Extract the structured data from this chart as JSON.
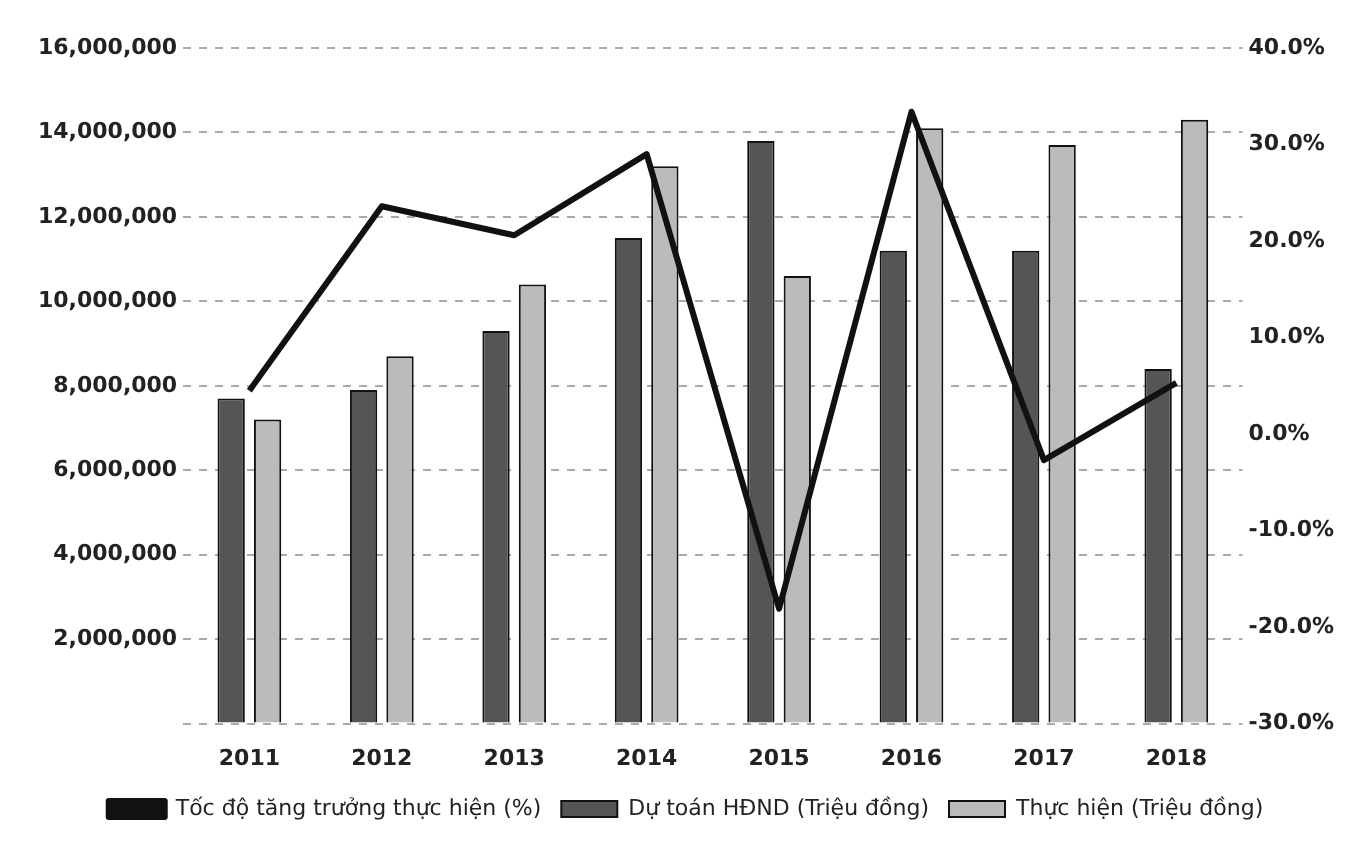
{
  "chart_data": {
    "type": "bar",
    "categories": [
      "2011",
      "2012",
      "2013",
      "2014",
      "2015",
      "2016",
      "2017",
      "2018"
    ],
    "series": [
      {
        "name": "Dự toán HĐND (Triệu đồng)",
        "color": "#555555",
        "values": [
          7700000,
          7900000,
          9300000,
          11500000,
          13800000,
          11200000,
          11200000,
          8400000
        ]
      },
      {
        "name": "Thực hiện (Triệu đồng)",
        "color": "#bbbbbb",
        "values": [
          7200000,
          8700000,
          10400000,
          13200000,
          10600000,
          14100000,
          13700000,
          14300000
        ]
      },
      {
        "name": "Tốc độ tăng trưởng thực hiện (%)",
        "type": "line",
        "axis": "y2",
        "color": "#111111",
        "values": [
          4.5,
          23.6,
          20.6,
          29.0,
          -18.1,
          33.4,
          -2.7,
          5.3
        ]
      }
    ],
    "ylim": [
      0,
      16000000
    ],
    "yticks": [
      {
        "value": 0,
        "label": null
      },
      {
        "value": 2000000,
        "label": "2,000,000"
      },
      {
        "value": 4000000,
        "label": "4,000,000"
      },
      {
        "value": 6000000,
        "label": "6,000,000"
      },
      {
        "value": 8000000,
        "label": "8,000,000"
      },
      {
        "value": 10000000,
        "label": "10,000,000"
      },
      {
        "value": 12000000,
        "label": "12,000,000"
      },
      {
        "value": 14000000,
        "label": "14,000,000"
      },
      {
        "value": 16000000,
        "label": "16,000,000"
      }
    ],
    "y2lim": [
      -30,
      40
    ],
    "y2ticks": [
      {
        "value": -30,
        "label": "-30.0%"
      },
      {
        "value": -20,
        "label": "-20.0%"
      },
      {
        "value": -10,
        "label": "-10.0%"
      },
      {
        "value": 0,
        "label": "0.0%"
      },
      {
        "value": 10,
        "label": "10.0%"
      },
      {
        "value": 20,
        "label": "20.0%"
      },
      {
        "value": 30,
        "label": "30.0%"
      },
      {
        "value": 40,
        "label": "40.0%"
      }
    ],
    "grid": "y",
    "legend": "bottom",
    "marker": "none"
  }
}
